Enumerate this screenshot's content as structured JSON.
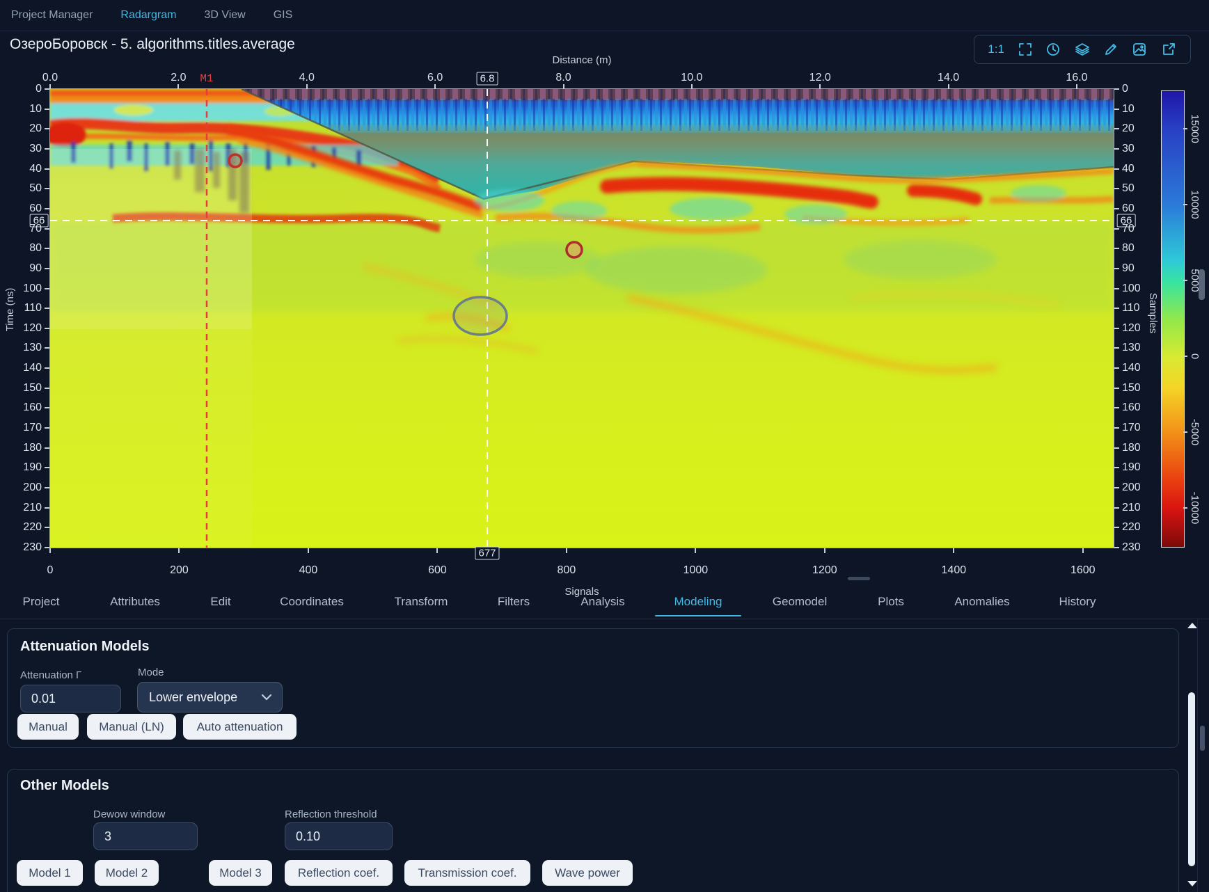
{
  "accent_color": "#42b7e2",
  "nav": {
    "items": [
      {
        "label": "Project Manager",
        "active": false
      },
      {
        "label": "Radargram",
        "active": true
      },
      {
        "label": "3D View",
        "active": false
      },
      {
        "label": "GIS",
        "active": false
      }
    ]
  },
  "view": {
    "title": "ОзероБоровск - 5. algorithms.titles.average",
    "toolbar": {
      "scale_label": "1:1",
      "icons": [
        "fullscreen-icon",
        "history-clock-icon",
        "layers-icon",
        "pencil-icon",
        "image-icon",
        "export-icon"
      ]
    }
  },
  "radargram": {
    "x_axis_top": {
      "title": "Distance (m)",
      "ticks": [
        "0.0",
        "2.0",
        "4.0",
        "6.0",
        "8.0",
        "10.0",
        "12.0",
        "14.0",
        "16.0"
      ],
      "cursor_value": "6.8"
    },
    "x_axis_bottom": {
      "title": "Signals",
      "ticks": [
        "0",
        "200",
        "400",
        "600",
        "800",
        "1000",
        "1200",
        "1400",
        "1600"
      ],
      "cursor_value": "677"
    },
    "y_axis_left": {
      "title": "Time (ns)",
      "ticks": [
        "0",
        "10",
        "20",
        "30",
        "40",
        "50",
        "60",
        "70",
        "80",
        "90",
        "100",
        "110",
        "120",
        "130",
        "140",
        "150",
        "160",
        "170",
        "180",
        "190",
        "200",
        "210",
        "220",
        "230"
      ],
      "cursor_value": "66"
    },
    "y_axis_right": {
      "title": "Samples",
      "cursor_value": "66"
    },
    "colorbar": {
      "ticks": [
        "15000",
        "10000",
        "5000",
        "0",
        "-5000",
        "-10000"
      ]
    },
    "marker_label": "M1"
  },
  "tabs": [
    {
      "label": "Project",
      "active": false
    },
    {
      "label": "Attributes",
      "active": false
    },
    {
      "label": "Edit",
      "active": false
    },
    {
      "label": "Coordinates",
      "active": false
    },
    {
      "label": "Transform",
      "active": false
    },
    {
      "label": "Filters",
      "active": false
    },
    {
      "label": "Analysis",
      "active": false
    },
    {
      "label": "Modeling",
      "active": true
    },
    {
      "label": "Geomodel",
      "active": false
    },
    {
      "label": "Plots",
      "active": false
    },
    {
      "label": "Anomalies",
      "active": false
    },
    {
      "label": "History",
      "active": false
    }
  ],
  "attenuation": {
    "heading": "Attenuation Models",
    "gamma_label": "Attenuation Γ",
    "gamma_value": "0.01",
    "mode_label": "Mode",
    "mode_value": "Lower envelope",
    "buttons": {
      "manual": "Manual",
      "manual_ln": "Manual (LN)",
      "auto": "Auto attenuation"
    }
  },
  "other_models": {
    "heading": "Other Models",
    "dewow_label": "Dewow window",
    "dewow_value": "3",
    "reflection_label": "Reflection threshold",
    "reflection_value": "0.10",
    "buttons": {
      "m1": "Model 1",
      "m2": "Model 2",
      "m3": "Model 3",
      "refl": "Reflection coef.",
      "trans": "Transmission coef.",
      "wave": "Wave power"
    }
  }
}
